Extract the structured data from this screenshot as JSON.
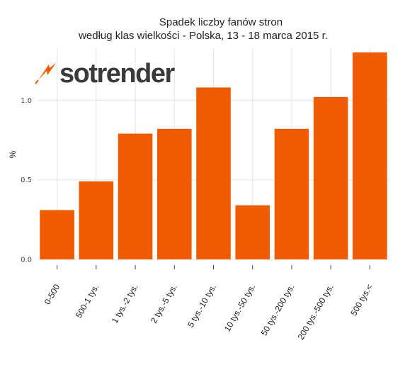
{
  "chart_data": {
    "type": "bar",
    "title_lines": [
      "Spadek liczby fanów stron",
      "według klas wielkości - Polska, 13 - 18 marca 2015 r."
    ],
    "xlabel": "",
    "ylabel": "%",
    "categories": [
      "0-500",
      "500-1 tys.",
      "1 tys.-2 tys.",
      "2 tys.-5 tys.",
      "5 tys.-10 tys.",
      "10 tys.-50 tys.",
      "50 tys.-200 tys.",
      "200 tys.-500 tys.",
      "500 tys.<"
    ],
    "values": [
      0.31,
      0.49,
      0.79,
      0.82,
      1.08,
      0.34,
      0.82,
      1.02,
      1.3
    ],
    "ylim": [
      0,
      1.3
    ],
    "yticks": [
      0.0,
      0.5,
      1.0
    ],
    "ytick_labels": [
      "0.0",
      "0.5",
      "1.0"
    ],
    "bar_color": "#f05a00",
    "grid": true,
    "legend": "none"
  },
  "logo": {
    "text": "sotrender",
    "accent_color": "#f05a00"
  }
}
